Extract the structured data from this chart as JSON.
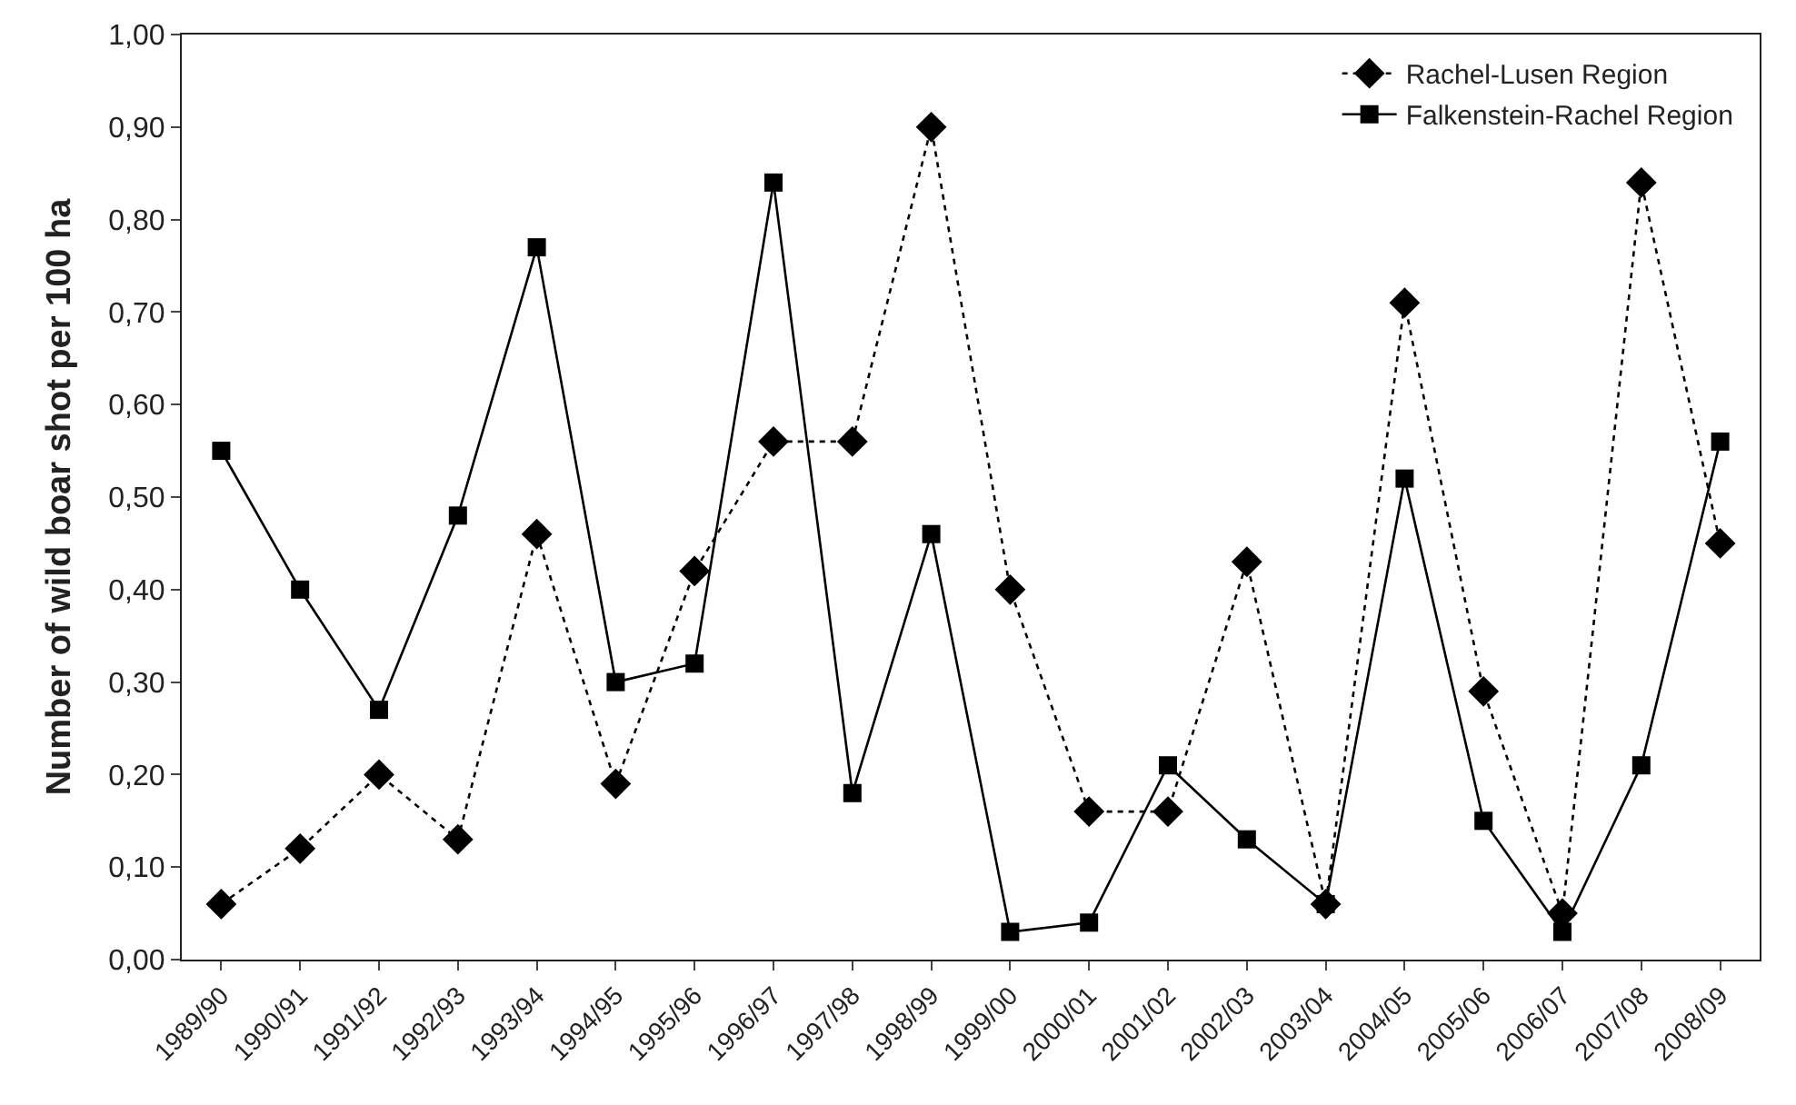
{
  "chart_data": {
    "type": "line",
    "ylabel": "Number of wild boar shot per 100 ha",
    "categories": [
      "1989/90",
      "1990/91",
      "1991/92",
      "1992/93",
      "1993/94",
      "1994/95",
      "1995/96",
      "1996/97",
      "1997/98",
      "1998/99",
      "1999/00",
      "2000/01",
      "2001/02",
      "2002/03",
      "2003/04",
      "2004/05",
      "2005/06",
      "2006/07",
      "2007/08",
      "2008/09"
    ],
    "series": [
      {
        "name": "Rachel-Lusen Region",
        "color": "#000000",
        "marker": "diamond",
        "line_style": "dotted",
        "values": [
          0.06,
          0.12,
          0.2,
          0.13,
          0.46,
          0.19,
          0.42,
          0.56,
          0.56,
          0.9,
          0.4,
          0.16,
          0.16,
          0.43,
          0.06,
          0.71,
          0.29,
          0.05,
          0.84,
          0.45
        ]
      },
      {
        "name": "Falkenstein-Rachel Region",
        "color": "#000000",
        "marker": "square",
        "line_style": "solid",
        "values": [
          0.55,
          0.4,
          0.27,
          0.48,
          0.77,
          0.3,
          0.32,
          0.84,
          0.18,
          0.46,
          0.03,
          0.04,
          0.21,
          0.13,
          0.06,
          0.52,
          0.15,
          0.03,
          0.21,
          0.56
        ]
      }
    ],
    "ylim": [
      0,
      1
    ],
    "yticks": [
      {
        "value": 0,
        "label": "0,00"
      },
      {
        "value": 0.1,
        "label": "0,10"
      },
      {
        "value": 0.2,
        "label": "0,20"
      },
      {
        "value": 0.3,
        "label": "0,30"
      },
      {
        "value": 0.4,
        "label": "0,40"
      },
      {
        "value": 0.5,
        "label": "0,50"
      },
      {
        "value": 0.6,
        "label": "0,60"
      },
      {
        "value": 0.7,
        "label": "0,70"
      },
      {
        "value": 0.8,
        "label": "0,80"
      },
      {
        "value": 0.9,
        "label": "0,90"
      },
      {
        "value": 1,
        "label": "1,00"
      }
    ],
    "legend": "top right"
  }
}
